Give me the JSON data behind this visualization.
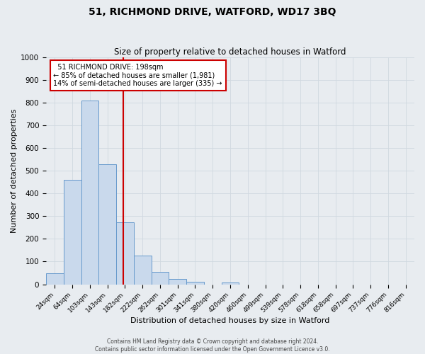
{
  "title": "51, RICHMOND DRIVE, WATFORD, WD17 3BQ",
  "subtitle": "Size of property relative to detached houses in Watford",
  "xlabel": "Distribution of detached houses by size in Watford",
  "ylabel": "Number of detached properties",
  "bar_labels": [
    "24sqm",
    "64sqm",
    "103sqm",
    "143sqm",
    "182sqm",
    "222sqm",
    "262sqm",
    "301sqm",
    "341sqm",
    "380sqm",
    "420sqm",
    "460sqm",
    "499sqm",
    "539sqm",
    "578sqm",
    "618sqm",
    "658sqm",
    "697sqm",
    "737sqm",
    "776sqm",
    "816sqm"
  ],
  "bar_values": [
    47,
    460,
    808,
    527,
    272,
    125,
    55,
    25,
    12,
    0,
    8,
    0,
    0,
    0,
    0,
    0,
    0,
    0,
    0,
    0,
    0
  ],
  "bar_color": "#c9d9ec",
  "bar_edge_color": "#6699cc",
  "reference_line_label": "51 RICHMOND DRIVE: 198sqm",
  "annotation_line1": "← 85% of detached houses are smaller (1,981)",
  "annotation_line2": "14% of semi-detached houses are larger (335) →",
  "annotation_box_color": "#ffffff",
  "annotation_box_edge_color": "#cc0000",
  "ref_line_color": "#cc0000",
  "ylim": [
    0,
    1000
  ],
  "yticks": [
    0,
    100,
    200,
    300,
    400,
    500,
    600,
    700,
    800,
    900,
    1000
  ],
  "grid_color": "#d0d8e0",
  "bg_color": "#e8ecf0",
  "footer1": "Contains HM Land Registry data © Crown copyright and database right 2024.",
  "footer2": "Contains public sector information licensed under the Open Government Licence v3.0."
}
